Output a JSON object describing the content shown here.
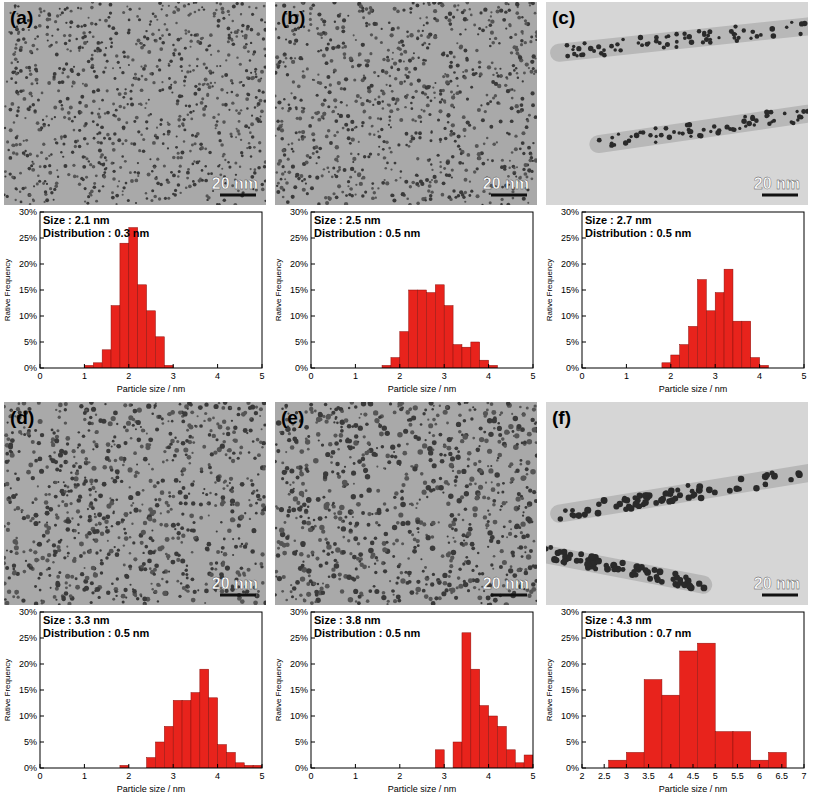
{
  "chart_data": [
    {
      "type": "histogram",
      "title": "(a)",
      "image_label": "20 nm",
      "annotations": [
        "Size : 2.1 nm",
        "Distribution : 0.3 nm"
      ],
      "x_label": "Particle size / nm",
      "y_label": "Rative Frequency",
      "color": "#e8231c",
      "bins": [
        1.0,
        1.2,
        1.4,
        1.6,
        1.8,
        2.0,
        2.2,
        2.4,
        2.6,
        2.8,
        3.0
      ],
      "values": [
        0.5,
        1,
        3.5,
        12,
        24,
        27,
        16,
        11,
        6,
        0.5
      ],
      "xlim": [
        0,
        5
      ],
      "xticks": [
        0,
        1,
        2,
        3,
        4,
        5
      ],
      "ylim": [
        0,
        30
      ],
      "yticks": [
        {
          "value": 0,
          "label": "0%"
        },
        {
          "value": 5,
          "label": "5%"
        },
        {
          "value": 10,
          "label": "10%"
        },
        {
          "value": 15,
          "label": "15%"
        },
        {
          "value": 20,
          "label": "20%"
        },
        {
          "value": 25,
          "label": "25%"
        },
        {
          "value": 30,
          "label": "30%"
        }
      ]
    },
    {
      "type": "histogram",
      "title": "(b)",
      "image_label": "20 nm",
      "annotations": [
        "Size : 2.5 nm",
        "Distribution : 0.5 nm"
      ],
      "x_label": "Particle size / nm",
      "y_label": "Rative Frequency",
      "color": "#e8231c",
      "bins": [
        1.6,
        1.8,
        2.0,
        2.2,
        2.4,
        2.6,
        2.8,
        3.0,
        3.2,
        3.4,
        3.6,
        3.8,
        4.0,
        4.2
      ],
      "values": [
        0.5,
        2,
        7,
        15,
        15,
        14.5,
        16,
        12,
        4.5,
        4,
        5,
        1.5,
        0.5
      ],
      "xlim": [
        0,
        5
      ],
      "xticks": [
        0,
        1,
        2,
        3,
        4,
        5
      ],
      "ylim": [
        0,
        30
      ],
      "yticks": [
        {
          "value": 0,
          "label": "0%"
        },
        {
          "value": 5,
          "label": "5%"
        },
        {
          "value": 10,
          "label": "10%"
        },
        {
          "value": 15,
          "label": "15%"
        },
        {
          "value": 20,
          "label": "20%"
        },
        {
          "value": 25,
          "label": "25%"
        },
        {
          "value": 30,
          "label": "30%"
        }
      ]
    },
    {
      "type": "histogram",
      "title": "(c)",
      "image_label": "20 nm",
      "annotations": [
        "Size : 2.7 nm",
        "Distribution : 0.5 nm"
      ],
      "x_label": "Particle size / nm",
      "y_label": "Rative Frequency",
      "color": "#e8231c",
      "bins": [
        1.8,
        2.0,
        2.2,
        2.4,
        2.6,
        2.8,
        3.0,
        3.2,
        3.4,
        3.6,
        3.8,
        4.0,
        4.2
      ],
      "values": [
        1,
        2.5,
        4.5,
        8,
        17,
        11,
        14.5,
        19,
        9,
        9,
        2,
        0.5
      ],
      "xlim": [
        0,
        5
      ],
      "xticks": [
        0,
        1,
        2,
        3,
        4,
        5
      ],
      "ylim": [
        0,
        30
      ],
      "yticks": [
        {
          "value": 0,
          "label": "0%"
        },
        {
          "value": 5,
          "label": "5%"
        },
        {
          "value": 10,
          "label": "10%"
        },
        {
          "value": 15,
          "label": "15%"
        },
        {
          "value": 20,
          "label": "20%"
        },
        {
          "value": 25,
          "label": "25%"
        },
        {
          "value": 30,
          "label": "30%"
        }
      ]
    },
    {
      "type": "histogram",
      "title": "(d)",
      "image_label": "20 nm",
      "annotations": [
        "Size : 3.3 nm",
        "Distribution : 0.5 nm"
      ],
      "x_label": "Particle size / nm",
      "y_label": "Rative Frequency",
      "color": "#e8231c",
      "bins": [
        1.8,
        2.0,
        2.2,
        2.4,
        2.6,
        2.8,
        3.0,
        3.2,
        3.4,
        3.6,
        3.8,
        4.0,
        4.2,
        4.4,
        4.6,
        4.8,
        5.0
      ],
      "values": [
        0.5,
        0,
        0,
        2,
        5,
        8,
        13,
        13,
        14.5,
        19,
        13.5,
        4.5,
        3,
        1,
        0.5,
        0.5
      ],
      "xlim": [
        0,
        5
      ],
      "xticks": [
        0,
        1,
        2,
        3,
        4,
        5
      ],
      "ylim": [
        0,
        30
      ],
      "yticks": [
        {
          "value": 0,
          "label": "0%"
        },
        {
          "value": 5,
          "label": "5%"
        },
        {
          "value": 10,
          "label": "10%"
        },
        {
          "value": 15,
          "label": "15%"
        },
        {
          "value": 20,
          "label": "20%"
        },
        {
          "value": 25,
          "label": "25%"
        },
        {
          "value": 30,
          "label": "30%"
        }
      ]
    },
    {
      "type": "histogram",
      "title": "(e)",
      "image_label": "20 nm",
      "annotations": [
        "Size : 3.8 nm",
        "Distribution : 0.5 nm"
      ],
      "x_label": "Particle size / nm",
      "y_label": "Rative Frequency",
      "color": "#e8231c",
      "bins": [
        2.8,
        3.0,
        3.2,
        3.4,
        3.6,
        3.8,
        4.0,
        4.2,
        4.4,
        4.6,
        4.8,
        5.0
      ],
      "values": [
        3.5,
        0,
        5,
        26,
        19,
        12,
        10,
        8,
        3.5,
        1,
        2.5
      ],
      "xlim": [
        0,
        5
      ],
      "xticks": [
        0,
        1,
        2,
        3,
        4,
        5
      ],
      "ylim": [
        0,
        30
      ],
      "yticks": [
        {
          "value": 0,
          "label": "0%"
        },
        {
          "value": 5,
          "label": "5%"
        },
        {
          "value": 10,
          "label": "10%"
        },
        {
          "value": 15,
          "label": "15%"
        },
        {
          "value": 20,
          "label": "20%"
        },
        {
          "value": 25,
          "label": "25%"
        },
        {
          "value": 30,
          "label": "30%"
        }
      ]
    },
    {
      "type": "histogram",
      "title": "(f)",
      "image_label": "20 nm",
      "annotations": [
        "Size : 4.3 nm",
        "Distribution : 0.7 nm"
      ],
      "x_label": "Particle size / nm",
      "y_label": "Rative Frequency",
      "color": "#e8231c",
      "bins": [
        2.6,
        3.0,
        3.4,
        3.8,
        4.2,
        4.6,
        5.0,
        5.4,
        5.8,
        6.2,
        6.6
      ],
      "values": [
        1.5,
        3,
        17,
        14,
        22.5,
        24,
        7,
        7,
        1.5,
        3
      ],
      "xlim": [
        2,
        7
      ],
      "xticks": [
        2,
        2.5,
        3,
        3.5,
        4,
        4.5,
        5,
        5.5,
        6,
        6.5,
        7
      ],
      "ylim": [
        0,
        30
      ],
      "yticks": [
        {
          "value": 0,
          "label": "0%"
        },
        {
          "value": 5,
          "label": "5%"
        },
        {
          "value": 10,
          "label": "10%"
        },
        {
          "value": 15,
          "label": "15%"
        },
        {
          "value": 20,
          "label": "20%"
        },
        {
          "value": 25,
          "label": "25%"
        },
        {
          "value": 30,
          "label": "30%"
        }
      ]
    }
  ]
}
